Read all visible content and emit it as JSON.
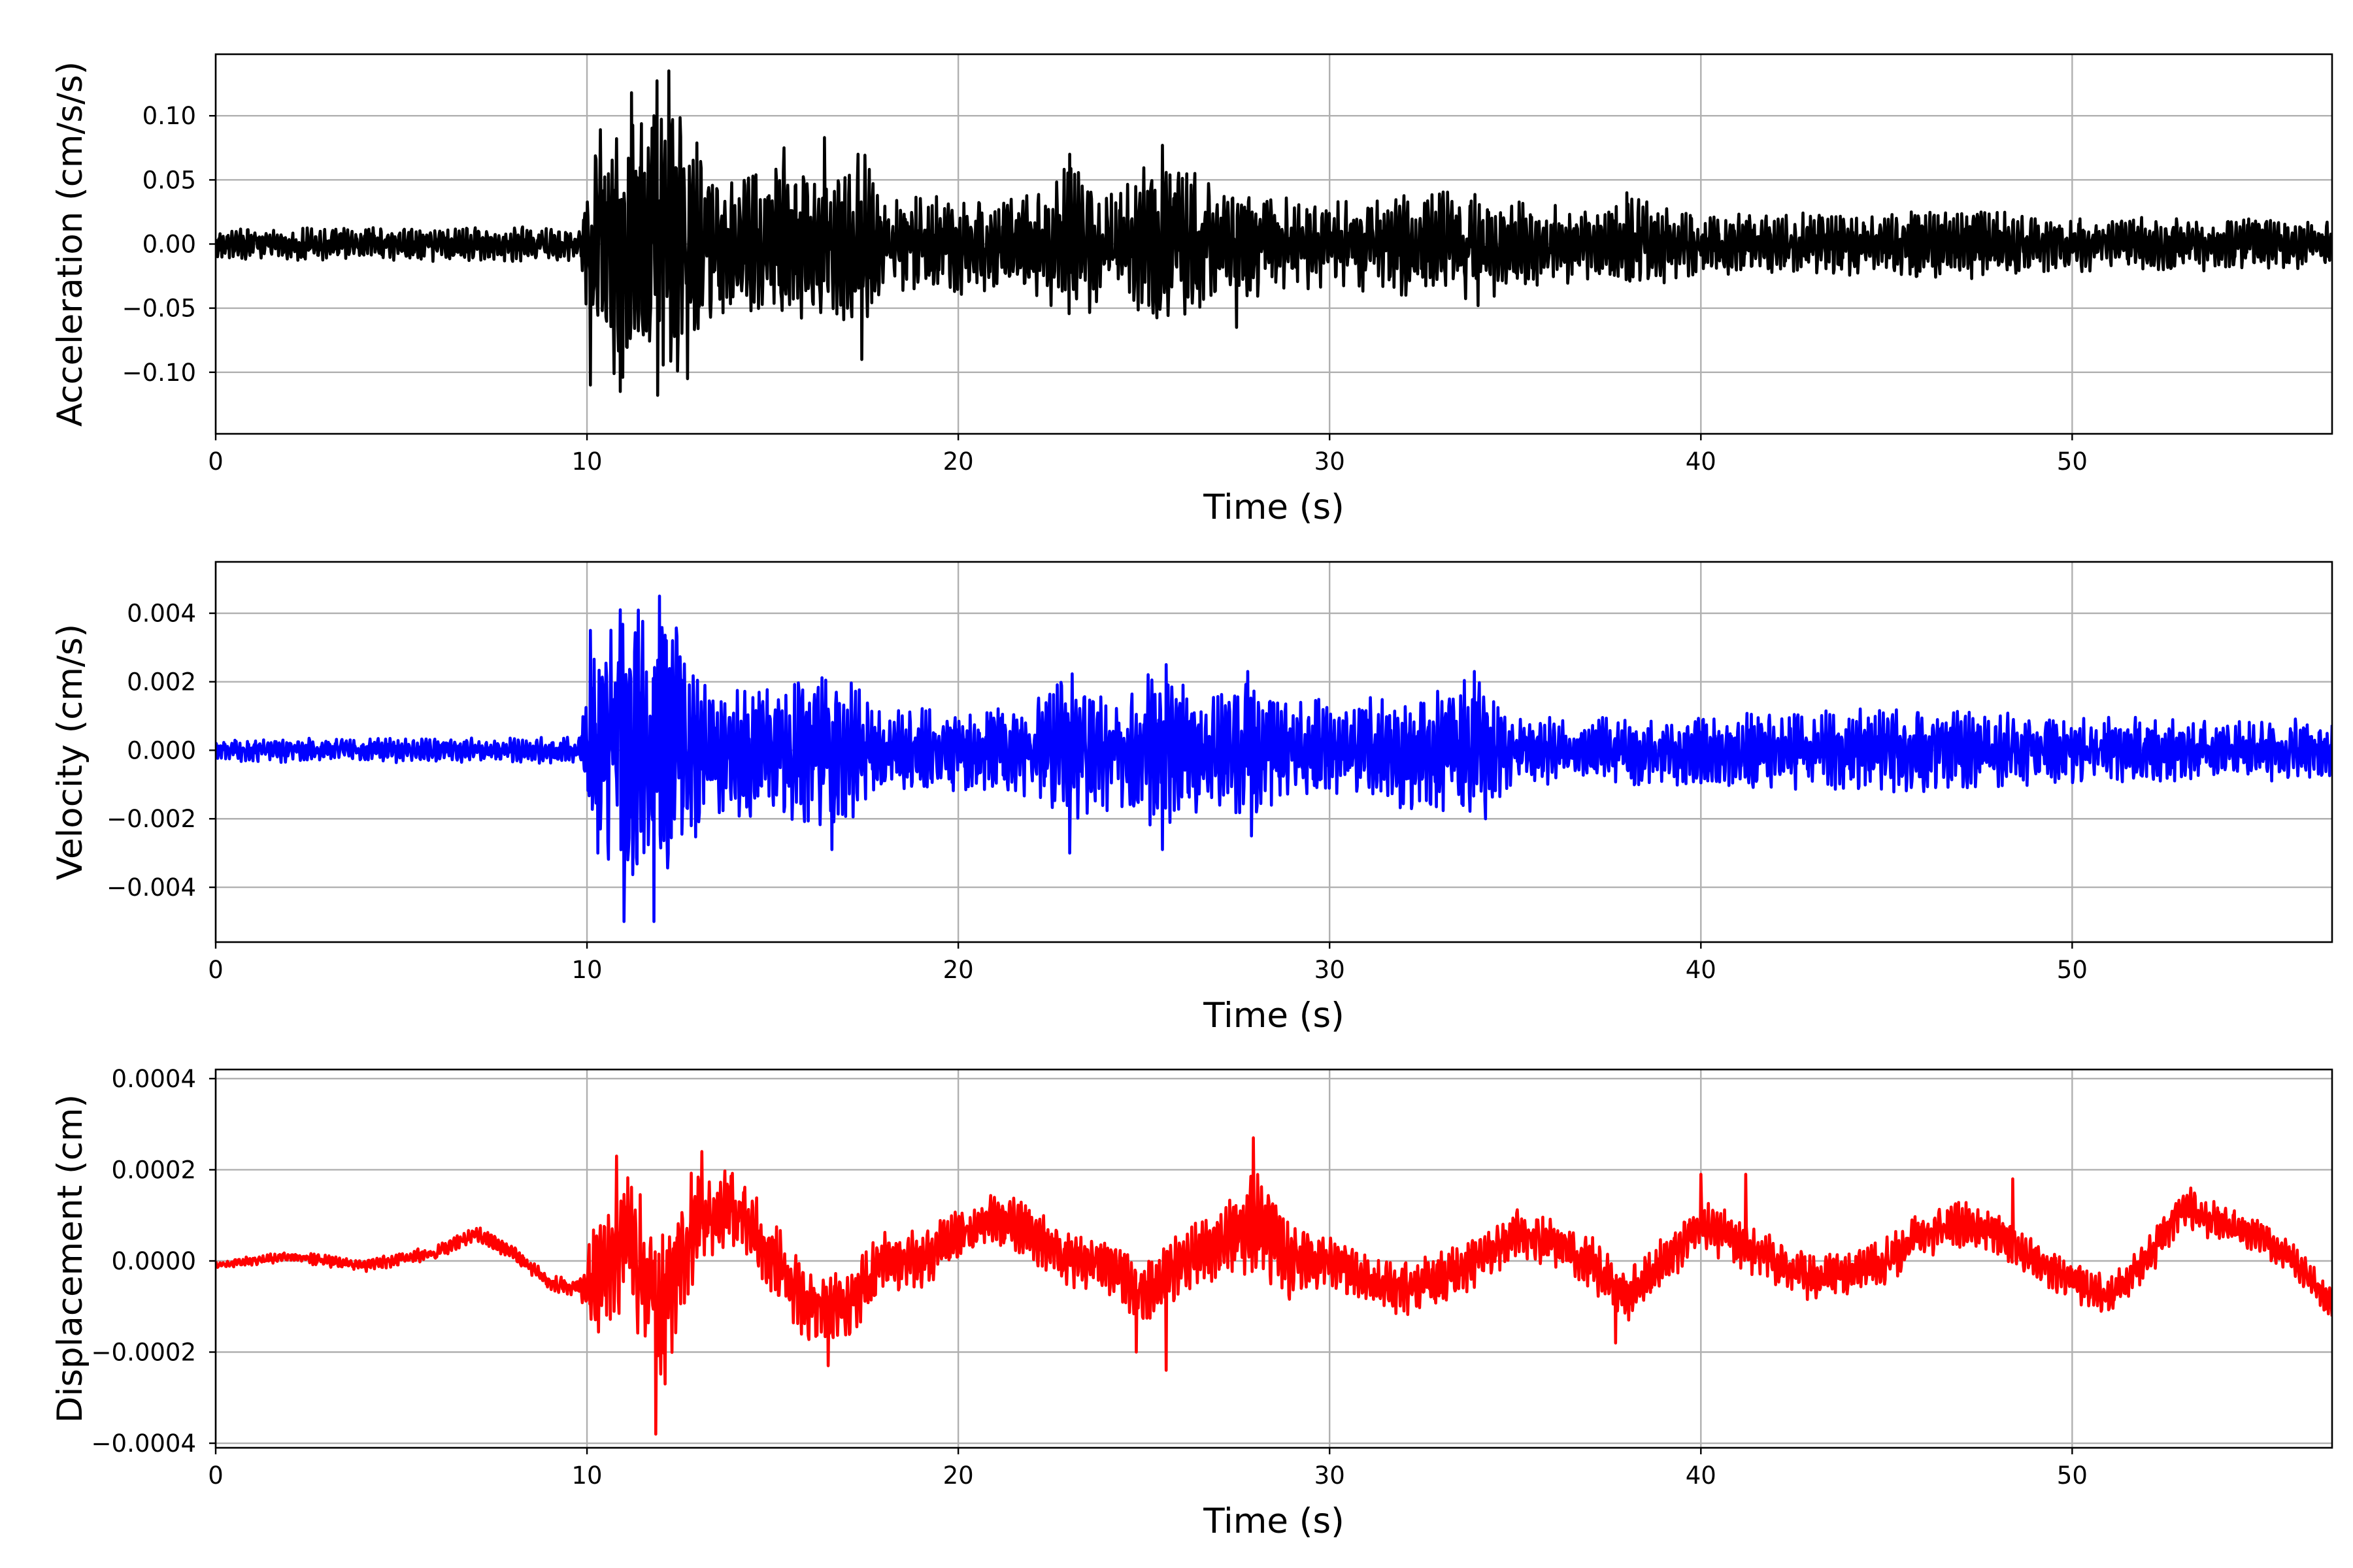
{
  "chart_data": [
    {
      "type": "line",
      "id": "acceleration",
      "xlabel": "Time (s)",
      "ylabel": "Acceleration (cm/s/s)",
      "xlim": [
        0,
        57
      ],
      "ylim": [
        -0.148,
        0.148
      ],
      "xticks": [
        0,
        10,
        20,
        30,
        40,
        50
      ],
      "xtick_labels": [
        "0",
        "10",
        "20",
        "30",
        "40",
        "50"
      ],
      "yticks": [
        -0.1,
        -0.05,
        0.0,
        0.05,
        0.1
      ],
      "ytick_labels": [
        "−0.10",
        "−0.05",
        "0.00",
        "0.05",
        "0.10"
      ],
      "grid": true,
      "series": [
        {
          "color": "#000000",
          "envelope": [
            [
              0,
              0.012
            ],
            [
              9.8,
              0.015
            ],
            [
              10.2,
              0.09
            ],
            [
              11,
              0.11
            ],
            [
              12,
              0.13
            ],
            [
              12.5,
              0.1
            ],
            [
              13.5,
              0.06
            ],
            [
              16.5,
              0.065
            ],
            [
              17.5,
              0.07
            ],
            [
              18,
              0.04
            ],
            [
              22,
              0.04
            ],
            [
              23,
              0.065
            ],
            [
              24,
              0.045
            ],
            [
              25.5,
              0.07
            ],
            [
              27,
              0.045
            ],
            [
              30,
              0.035
            ],
            [
              34,
              0.045
            ],
            [
              37,
              0.03
            ],
            [
              38,
              0.04
            ],
            [
              40,
              0.025
            ],
            [
              45,
              0.025
            ],
            [
              46,
              0.03
            ],
            [
              50,
              0.022
            ],
            [
              57,
              0.022
            ]
          ],
          "peaks": [
            [
              10.1,
              -0.11
            ],
            [
              10.9,
              -0.115
            ],
            [
              11.2,
              0.118
            ],
            [
              11.8,
              0.1
            ],
            [
              11.9,
              -0.118
            ],
            [
              12.2,
              0.135
            ],
            [
              12.7,
              -0.105
            ],
            [
              15.3,
              0.075
            ],
            [
              16.4,
              0.083
            ],
            [
              17.3,
              0.07
            ],
            [
              17.4,
              -0.09
            ],
            [
              23,
              0.07
            ],
            [
              25.5,
              0.077
            ],
            [
              27.5,
              -0.065
            ],
            [
              34,
              -0.048
            ],
            [
              38,
              0.04
            ]
          ]
        }
      ]
    },
    {
      "type": "line",
      "id": "velocity",
      "xlabel": "Time (s)",
      "ylabel": "Velocity (cm/s)",
      "xlim": [
        0,
        57
      ],
      "ylim": [
        -0.0056,
        0.0055
      ],
      "xticks": [
        0,
        10,
        20,
        30,
        40,
        50
      ],
      "xtick_labels": [
        "0",
        "10",
        "20",
        "30",
        "40",
        "50"
      ],
      "yticks": [
        -0.004,
        -0.002,
        0.0,
        0.002,
        0.004
      ],
      "ytick_labels": [
        "−0.004",
        "−0.002",
        "0.000",
        "0.002",
        "0.004"
      ],
      "grid": true,
      "series": [
        {
          "color": "#0000ff",
          "envelope": [
            [
              0,
              0.00035
            ],
            [
              9.8,
              0.0004
            ],
            [
              10.2,
              0.0032
            ],
            [
              11,
              0.0042
            ],
            [
              12,
              0.0045
            ],
            [
              12.8,
              0.003
            ],
            [
              13.5,
              0.002
            ],
            [
              16,
              0.0022
            ],
            [
              17,
              0.0022
            ],
            [
              18,
              0.0012
            ],
            [
              22,
              0.0014
            ],
            [
              23,
              0.0024
            ],
            [
              24,
              0.0018
            ],
            [
              25.5,
              0.0024
            ],
            [
              27,
              0.0016
            ],
            [
              28,
              0.0022
            ],
            [
              30,
              0.0014
            ],
            [
              34,
              0.0022
            ],
            [
              35,
              0.001
            ],
            [
              40,
              0.0011
            ],
            [
              46,
              0.0013
            ],
            [
              50,
              0.001
            ],
            [
              57,
              0.0009
            ]
          ],
          "peaks": [
            [
              10.1,
              0.0035
            ],
            [
              10.3,
              -0.003
            ],
            [
              10.9,
              0.0041
            ],
            [
              11,
              -0.005
            ],
            [
              11.8,
              -0.005
            ],
            [
              11.95,
              0.0045
            ],
            [
              12.3,
              0.0032
            ],
            [
              16.6,
              -0.0029
            ],
            [
              23,
              -0.003
            ],
            [
              25.6,
              0.0025
            ],
            [
              25.5,
              -0.0029
            ],
            [
              27.8,
              0.0023
            ],
            [
              27.9,
              -0.0025
            ],
            [
              33.9,
              0.0023
            ],
            [
              34.2,
              -0.002
            ]
          ]
        }
      ]
    },
    {
      "type": "line",
      "id": "displacement",
      "xlabel": "Time (s)",
      "ylabel": "Displacement (cm)",
      "xlim": [
        0,
        57
      ],
      "ylim": [
        -0.00041,
        0.00042
      ],
      "xticks": [
        0,
        10,
        20,
        30,
        40,
        50
      ],
      "xtick_labels": [
        "0",
        "10",
        "20",
        "30",
        "40",
        "50"
      ],
      "yticks": [
        -0.0004,
        -0.0002,
        0.0,
        0.0002,
        0.0004
      ],
      "ytick_labels": [
        "−0.0004",
        "−0.0002",
        "0.0000",
        "0.0002",
        "0.0004"
      ],
      "grid": true,
      "series": [
        {
          "color": "#ff0000",
          "trend": [
            [
              0,
              -1e-05
            ],
            [
              2,
              1e-05
            ],
            [
              4,
              -1e-05
            ],
            [
              6,
              2e-05
            ],
            [
              7,
              6e-05
            ],
            [
              8,
              2e-05
            ],
            [
              9,
              -5e-05
            ],
            [
              10,
              -6e-05
            ],
            [
              11,
              5e-05
            ],
            [
              12,
              -0.0001
            ],
            [
              13,
              0.0001
            ],
            [
              14,
              0.00012
            ],
            [
              15,
              0.0
            ],
            [
              16,
              -0.0001
            ],
            [
              17,
              -0.0001
            ],
            [
              18,
              0.0
            ],
            [
              19,
              0.0
            ],
            [
              20,
              6e-05
            ],
            [
              21,
              0.0001
            ],
            [
              22,
              6e-05
            ],
            [
              23,
              0.0
            ],
            [
              24,
              0.0
            ],
            [
              25,
              -8e-05
            ],
            [
              26,
              0.0
            ],
            [
              27,
              4e-05
            ],
            [
              28,
              8e-05
            ],
            [
              29,
              0.0
            ],
            [
              30,
              0.0
            ],
            [
              31,
              -4e-05
            ],
            [
              32,
              -6e-05
            ],
            [
              33,
              -4e-05
            ],
            [
              34,
              0.0
            ],
            [
              35,
              6e-05
            ],
            [
              36,
              4e-05
            ],
            [
              37,
              0.0
            ],
            [
              38,
              -8e-05
            ],
            [
              39,
              0.0
            ],
            [
              40,
              8e-05
            ],
            [
              41,
              4e-05
            ],
            [
              42,
              0.0
            ],
            [
              43,
              -4e-05
            ],
            [
              44,
              -2e-05
            ],
            [
              45,
              0.0
            ],
            [
              46,
              6e-05
            ],
            [
              47,
              8e-05
            ],
            [
              48,
              6e-05
            ],
            [
              49,
              0.0
            ],
            [
              50,
              -4e-05
            ],
            [
              51,
              -8e-05
            ],
            [
              52,
              0.0
            ],
            [
              53,
              0.00012
            ],
            [
              54,
              8e-05
            ],
            [
              55,
              6e-05
            ],
            [
              56,
              0.0
            ],
            [
              57,
              -0.0001
            ]
          ],
          "envelope": [
            [
              0,
              1e-05
            ],
            [
              9.8,
              2e-05
            ],
            [
              10.2,
              0.00014
            ],
            [
              12,
              0.00018
            ],
            [
              13.5,
              0.0001
            ],
            [
              20,
              6e-05
            ],
            [
              27,
              8e-05
            ],
            [
              28,
              0.00012
            ],
            [
              30,
              6e-05
            ],
            [
              40,
              6e-05
            ],
            [
              57,
              4e-05
            ]
          ],
          "peaks": [
            [
              10.8,
              0.00023
            ],
            [
              11.85,
              -0.00038
            ],
            [
              12.1,
              -0.00027
            ],
            [
              13.1,
              0.00024
            ],
            [
              16.5,
              -0.00023
            ],
            [
              24.8,
              -0.0002
            ],
            [
              25.6,
              -0.00024
            ],
            [
              27.95,
              0.00027
            ],
            [
              37.7,
              -0.00018
            ],
            [
              40,
              0.00019
            ],
            [
              41.2,
              0.00019
            ],
            [
              48.4,
              0.00018
            ],
            [
              53.2,
              0.00016
            ]
          ]
        }
      ]
    }
  ]
}
